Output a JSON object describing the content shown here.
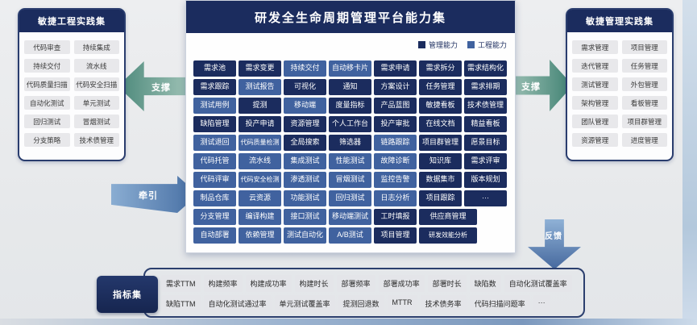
{
  "colors": {
    "navy_management": "#1b2c5e",
    "blue_engineering": "#40629f",
    "teal_arrow": "#4e8a7c",
    "blue_arrow": "#466ea3",
    "pill_bg": "#e8e8eb"
  },
  "left_panel": {
    "title": "敏捷工程实践集",
    "items": [
      "代码审查",
      "持续集成",
      "持续交付",
      "流水线",
      "代码质量扫描",
      "代码安全扫描",
      "自动化测试",
      "单元测试",
      "回归测试",
      "冒烟测试",
      "分支策略",
      "技术债管理"
    ]
  },
  "right_panel": {
    "title": "敏捷管理实践集",
    "items": [
      "需求管理",
      "项目管理",
      "迭代管理",
      "任务管理",
      "测试管理",
      "外包管理",
      "架构管理",
      "看板管理",
      "团队管理",
      "项目群管理",
      "资源管理",
      "进度管理"
    ]
  },
  "center": {
    "title": "研发全生命周期管理平台能力集",
    "legend": [
      {
        "label": "管理能力",
        "color": "#1b2c5e"
      },
      {
        "label": "工程能力",
        "color": "#40629f"
      }
    ],
    "rows": [
      [
        {
          "l": "需求池",
          "t": "m"
        },
        {
          "l": "需求变更",
          "t": "m"
        },
        {
          "l": "持续交付",
          "t": "e"
        },
        {
          "l": "自动移卡片",
          "t": "e"
        },
        {
          "l": "需求申请",
          "t": "m"
        },
        {
          "l": "需求拆分",
          "t": "m"
        },
        {
          "l": "需求结构化",
          "t": "m"
        }
      ],
      [
        {
          "l": "需求跟踪",
          "t": "m"
        },
        {
          "l": "测试报告",
          "t": "e"
        },
        {
          "l": "可视化",
          "t": "m"
        },
        {
          "l": "通知",
          "t": "m"
        },
        {
          "l": "方案设计",
          "t": "m"
        },
        {
          "l": "任务管理",
          "t": "m"
        },
        {
          "l": "需求排期",
          "t": "m"
        }
      ],
      [
        {
          "l": "测试用例",
          "t": "e"
        },
        {
          "l": "提测",
          "t": "m"
        },
        {
          "l": "移动端",
          "t": "e"
        },
        {
          "l": "度量指标",
          "t": "m"
        },
        {
          "l": "产品蓝图",
          "t": "m"
        },
        {
          "l": "敏捷看板",
          "t": "m"
        },
        {
          "l": "技术债管理",
          "t": "m"
        }
      ],
      [
        {
          "l": "缺陷管理",
          "t": "m"
        },
        {
          "l": "投产申请",
          "t": "m"
        },
        {
          "l": "资源管理",
          "t": "m"
        },
        {
          "l": "个人工作台",
          "t": "m"
        },
        {
          "l": "投产审批",
          "t": "m"
        },
        {
          "l": "在线文档",
          "t": "m"
        },
        {
          "l": "精益看板",
          "t": "m"
        }
      ],
      [
        {
          "l": "测试退回",
          "t": "e"
        },
        {
          "l": "代码质量检测",
          "t": "e"
        },
        {
          "l": "全局搜索",
          "t": "m"
        },
        {
          "l": "筛选器",
          "t": "m"
        },
        {
          "l": "链路跟踪",
          "t": "e"
        },
        {
          "l": "项目群管理",
          "t": "m"
        },
        {
          "l": "愿景目标",
          "t": "m"
        }
      ],
      [
        {
          "l": "代码托管",
          "t": "e"
        },
        {
          "l": "流水线",
          "t": "e"
        },
        {
          "l": "集成测试",
          "t": "e"
        },
        {
          "l": "性能测试",
          "t": "e"
        },
        {
          "l": "故障诊断",
          "t": "e"
        },
        {
          "l": "知识库",
          "t": "m"
        },
        {
          "l": "需求评审",
          "t": "m"
        }
      ],
      [
        {
          "l": "代码评审",
          "t": "e"
        },
        {
          "l": "代码安全检测",
          "t": "e"
        },
        {
          "l": "渗透测试",
          "t": "e"
        },
        {
          "l": "冒烟测试",
          "t": "e"
        },
        {
          "l": "监控告警",
          "t": "e"
        },
        {
          "l": "数据集市",
          "t": "m"
        },
        {
          "l": "版本规划",
          "t": "m"
        }
      ],
      [
        {
          "l": "制品仓库",
          "t": "e"
        },
        {
          "l": "云资源",
          "t": "e"
        },
        {
          "l": "功能测试",
          "t": "e"
        },
        {
          "l": "回归测试",
          "t": "e"
        },
        {
          "l": "日志分析",
          "t": "e"
        },
        {
          "l": "项目跟踪",
          "t": "m"
        },
        {
          "l": "···",
          "t": "m"
        }
      ],
      [
        {
          "l": "分支管理",
          "t": "e"
        },
        {
          "l": "编译构建",
          "t": "e"
        },
        {
          "l": "接口测试",
          "t": "e"
        },
        {
          "l": "移动端测试",
          "t": "e"
        },
        {
          "l": "工时填报",
          "t": "m"
        },
        {
          "l": "供应商管理",
          "t": "m"
        }
      ],
      [
        {
          "l": "自动部署",
          "t": "e"
        },
        {
          "l": "依赖管理",
          "t": "e"
        },
        {
          "l": "测试自动化",
          "t": "e"
        },
        {
          "l": "A/B测试",
          "t": "e"
        },
        {
          "l": "项目管理",
          "t": "m"
        },
        {
          "l": "研发效能分析",
          "t": "m"
        }
      ]
    ]
  },
  "arrows": {
    "support_left": "支撑",
    "support_right": "支撑",
    "pull": "牵引",
    "feedback": "反馈"
  },
  "metrics": {
    "title": "指标集",
    "row1": [
      "需求TTM",
      "构建频率",
      "构建成功率",
      "构建时长",
      "部署频率",
      "部署成功率",
      "部署时长",
      "缺陷数",
      "自动化测试覆盖率"
    ],
    "row2": [
      "缺陷TTM",
      "自动化测试通过率",
      "单元测试覆盖率",
      "提测回退数",
      "MTTR",
      "技术债务率",
      "代码扫描问题率",
      "···"
    ]
  }
}
